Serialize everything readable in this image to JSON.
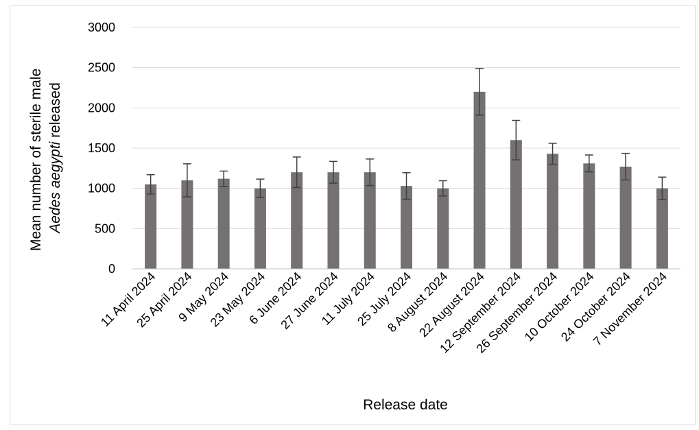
{
  "chart_data": {
    "type": "bar",
    "xlabel": "Release date",
    "ylabel_line1": "Mean number of sterile male",
    "ylabel_line2_italic": "Aedes aegypti",
    "ylabel_line2_rest": " released",
    "ylim": [
      0,
      3000
    ],
    "yticks": [
      0,
      500,
      1000,
      1500,
      2000,
      2500,
      3000
    ],
    "grid": true,
    "legend": "none",
    "bar_color": "#767171",
    "error_bar_color": "#404040",
    "categories": [
      "11 April 2024",
      "25 April 2024",
      "9 May 2024",
      "23 May 2024",
      "6 June 2024",
      "27 June 2024",
      "11 July 2024",
      "25 July 2024",
      "8 August 2024",
      "22 August 2024",
      "12 September 2024",
      "26 September 2024",
      "10 October 2024",
      "24 October 2024",
      "7 November 2024"
    ],
    "values": [
      1050,
      1100,
      1120,
      1000,
      1200,
      1200,
      1200,
      1030,
      1000,
      2200,
      1600,
      1430,
      1310,
      1270,
      1000
    ],
    "errors": [
      120,
      205,
      95,
      115,
      190,
      135,
      165,
      165,
      95,
      290,
      245,
      130,
      105,
      165,
      140
    ]
  }
}
